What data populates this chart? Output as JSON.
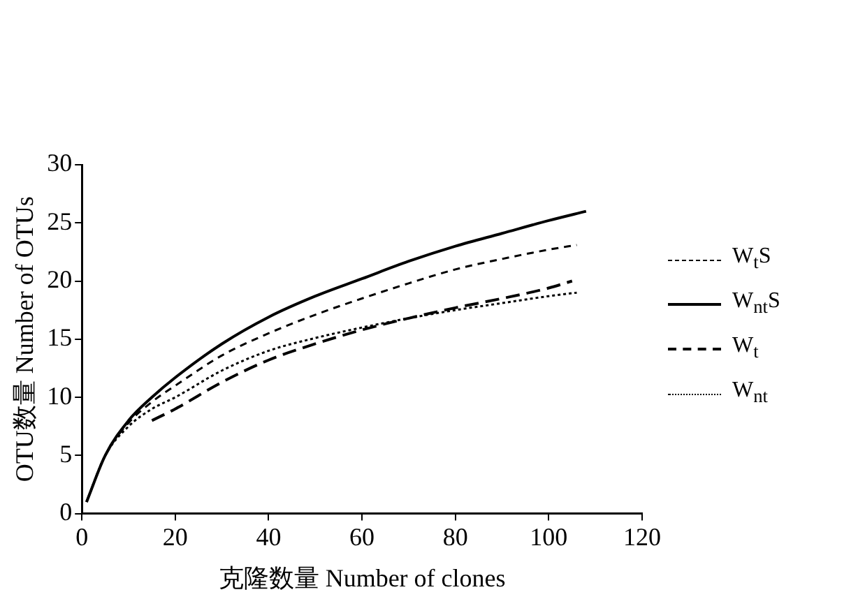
{
  "chart_data": {
    "type": "line",
    "xlabel": "克隆数量 Number of clones",
    "ylabel": "OTU数量 Number of OTUs",
    "xlim": [
      0,
      120
    ],
    "xticks": [
      0,
      20,
      40,
      60,
      80,
      100,
      120
    ],
    "ylim": [
      0,
      30
    ],
    "yticks": [
      0,
      5,
      10,
      15,
      20,
      25,
      30
    ],
    "legend": "right",
    "marker": "none",
    "series": [
      {
        "name": "W$_{t}$S",
        "color": "#000000",
        "line_style": "dashed",
        "x": [
          1,
          5,
          10,
          15,
          20,
          30,
          40,
          50,
          60,
          70,
          80,
          90,
          100,
          106
        ],
        "values": [
          1,
          5,
          7.8,
          9.6,
          11,
          13.6,
          15.5,
          17.1,
          18.5,
          19.8,
          21,
          21.9,
          22.7,
          23.1
        ]
      },
      {
        "name": "W$_{nt}$S",
        "color": "#000000",
        "line_style": "solid",
        "x": [
          1,
          5,
          10,
          15,
          20,
          30,
          40,
          50,
          60,
          70,
          80,
          90,
          100,
          108
        ],
        "values": [
          1,
          5,
          8,
          10,
          11.7,
          14.6,
          16.9,
          18.7,
          20.2,
          21.7,
          23,
          24.1,
          25.2,
          26
        ]
      },
      {
        "name": "W$_{t}$",
        "color": "#000000",
        "line_style": "longdash",
        "x": [
          15,
          20,
          30,
          40,
          50,
          60,
          70,
          80,
          90,
          100,
          105
        ],
        "values": [
          8,
          9,
          11.3,
          13.2,
          14.6,
          15.8,
          16.8,
          17.7,
          18.5,
          19.4,
          20
        ]
      },
      {
        "name": "W$_{nt}$",
        "color": "#000000",
        "line_style": "dotted",
        "x": [
          1,
          5,
          10,
          15,
          20,
          30,
          40,
          50,
          60,
          70,
          80,
          90,
          100,
          106
        ],
        "values": [
          1,
          5,
          7.5,
          9,
          10,
          12.3,
          14,
          15.1,
          16,
          16.8,
          17.5,
          18.1,
          18.7,
          19
        ]
      }
    ]
  }
}
